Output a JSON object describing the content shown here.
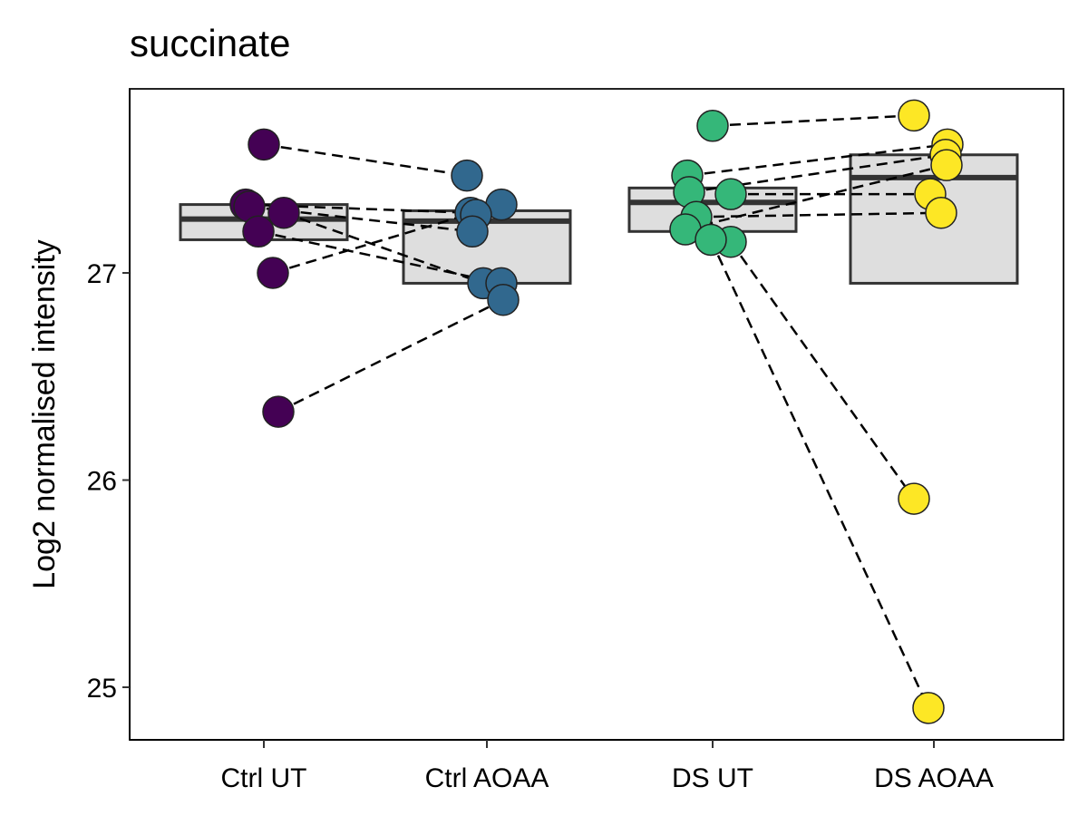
{
  "chart_data": {
    "type": "box",
    "title": "succinate",
    "xlabel": "",
    "ylabel": "Log2 normalised intensity",
    "ylim": [
      24.75,
      27.9
    ],
    "yticks": [
      25,
      26,
      27
    ],
    "categories": [
      "Ctrl UT",
      "Ctrl AOAA",
      "DS UT",
      "DS AOAA"
    ],
    "colors": [
      "#440154",
      "#31688E",
      "#35B779",
      "#FDE725"
    ],
    "boxes": [
      {
        "q1": 27.16,
        "median": 27.26,
        "q3": 27.33
      },
      {
        "q1": 26.95,
        "median": 27.25,
        "q3": 27.3
      },
      {
        "q1": 27.2,
        "median": 27.34,
        "q3": 27.41
      },
      {
        "q1": 26.95,
        "median": 27.46,
        "q3": 27.57
      }
    ],
    "points": [
      [
        27.62,
        27.33,
        27.32,
        27.29,
        27.2,
        27.0,
        26.33
      ],
      [
        27.47,
        27.33,
        27.29,
        27.28,
        27.2,
        26.95,
        26.95,
        26.87
      ],
      [
        27.71,
        27.47,
        27.39,
        27.38,
        27.27,
        27.21,
        27.15,
        27.16
      ],
      [
        27.76,
        27.62,
        27.57,
        27.52,
        27.38,
        27.29,
        25.91,
        24.9
      ]
    ],
    "pairs": [
      [
        27.62,
        27.47
      ],
      [
        27.33,
        27.29
      ],
      [
        27.32,
        27.2
      ],
      [
        27.29,
        26.95
      ],
      [
        27.2,
        26.95
      ],
      [
        27.0,
        27.47
      ],
      [
        26.33,
        26.87
      ],
      [
        27.71,
        27.76
      ],
      [
        27.47,
        27.62
      ],
      [
        27.39,
        27.57
      ],
      [
        27.38,
        27.38
      ],
      [
        27.27,
        27.29
      ],
      [
        27.21,
        27.52
      ],
      [
        27.15,
        25.91
      ],
      [
        27.16,
        24.9
      ]
    ]
  }
}
